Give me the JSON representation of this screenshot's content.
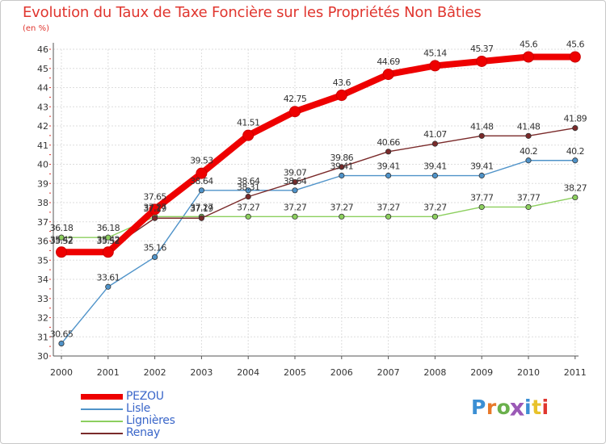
{
  "title": "Evolution du Taux de Taxe Foncière sur les Propriétés Non Bâties",
  "unit": "(en %)",
  "logo_text": "Proxiti",
  "logo_colors": [
    "#3b8fd4",
    "#e8792a",
    "#6ab04c",
    "#9b59b6",
    "#3b8fd4",
    "#e8c22a",
    "#e0362f"
  ],
  "chart_data": {
    "type": "line",
    "title": "Evolution du Taux de Taxe Foncière sur les Propriétés Non Bâties",
    "xlabel": "",
    "ylabel": "(en %)",
    "categories": [
      "2000",
      "2001",
      "2002",
      "2003",
      "2004",
      "2005",
      "2006",
      "2007",
      "2008",
      "2009",
      "2010",
      "2011"
    ],
    "ylim": [
      30,
      46
    ],
    "yticks": [
      "30",
      "31",
      "32",
      "33",
      "34",
      "35",
      "36",
      "37",
      "38",
      "39",
      "40",
      "41",
      "42",
      "43",
      "44",
      "45",
      "46"
    ],
    "grid": true,
    "legend_position": "bottom-left",
    "series": [
      {
        "name": "Lisle",
        "color": "#4f93c9",
        "values": [
          30.65,
          33.61,
          35.16,
          38.64,
          38.64,
          38.64,
          39.41,
          39.41,
          39.41,
          39.41,
          40.2,
          40.2
        ],
        "labels": [
          "30.65",
          "33.61",
          "35.16",
          "38.64",
          "38.64",
          "38.64",
          "39.41",
          "39.41",
          "39.41",
          "39.41",
          "40.2",
          "40.2"
        ]
      },
      {
        "name": "Lignières",
        "color": "#8ccf5e",
        "values": [
          36.18,
          36.18,
          37.27,
          37.27,
          37.27,
          37.27,
          37.27,
          37.27,
          37.27,
          37.77,
          37.77,
          38.27
        ],
        "labels": [
          "36.18",
          "36.18",
          "37.27",
          "37.27",
          "37.27",
          "37.27",
          "37.27",
          "37.27",
          "37.27",
          "37.77",
          "37.77",
          "38.27"
        ]
      },
      {
        "name": "Renay",
        "color": "#7a2a2a",
        "values": [
          35.52,
          35.52,
          37.19,
          37.19,
          38.31,
          39.07,
          39.86,
          40.66,
          41.07,
          41.48,
          41.48,
          41.89
        ],
        "labels": [
          "35.52",
          "35.52",
          "37.19",
          "37.19",
          "38.31",
          "39.07",
          "39.86",
          "40.66",
          "41.07",
          "41.48",
          "41.48",
          "41.89"
        ]
      },
      {
        "name": "PEZOU",
        "color": "#ee0000",
        "values": [
          35.42,
          35.42,
          37.65,
          39.53,
          41.51,
          42.75,
          43.6,
          44.69,
          45.14,
          45.37,
          45.6,
          45.6
        ],
        "labels": [
          "35.42",
          "35.42",
          "37.65",
          "39.53",
          "41.51",
          "42.75",
          "43.6",
          "44.69",
          "45.14",
          "45.37",
          "45.6",
          "45.6"
        ]
      }
    ],
    "legend_order": [
      "PEZOU",
      "Lisle",
      "Lignières",
      "Renay"
    ]
  }
}
